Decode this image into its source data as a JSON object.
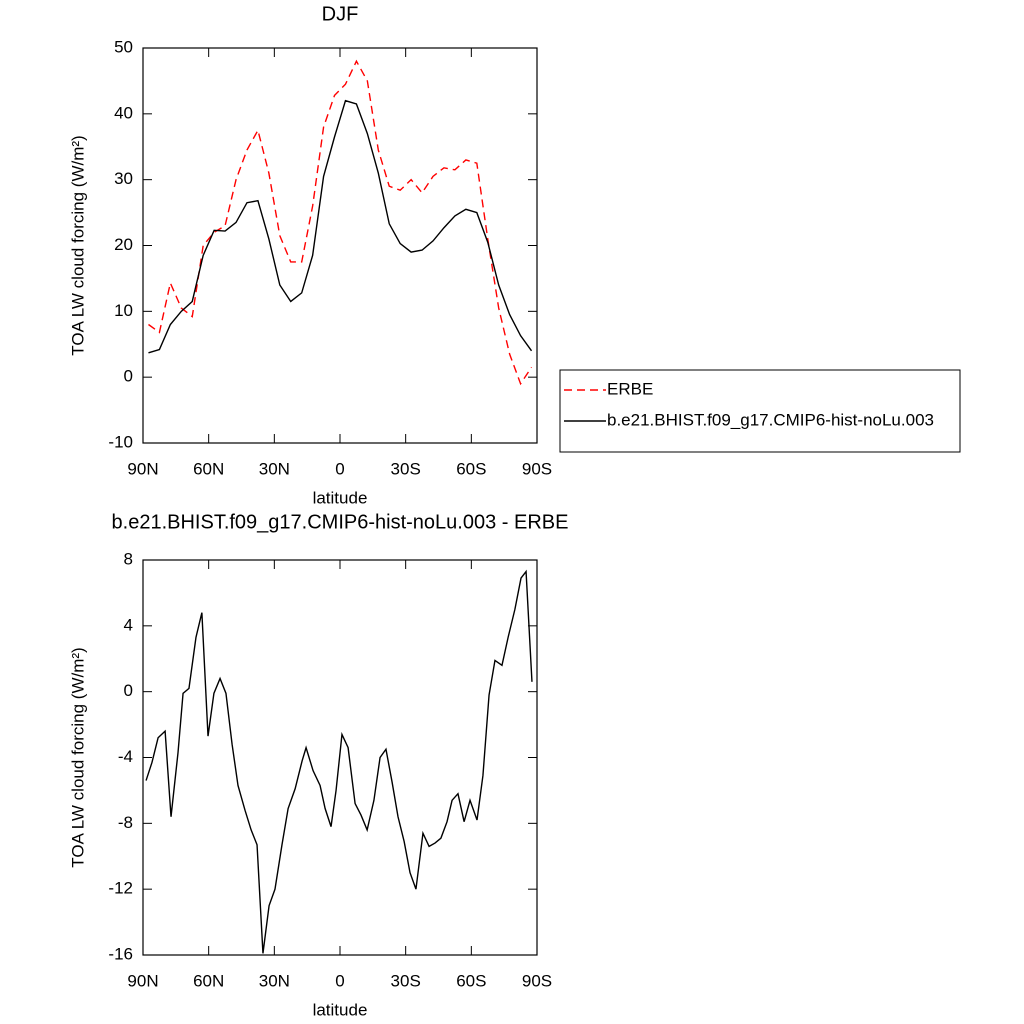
{
  "chart_data": [
    {
      "type": "line",
      "title": "DJF",
      "xlabel": "latitude",
      "ylabel": "TOA LW cloud forcing (W/m²)",
      "x": [
        87.5,
        82.5,
        77.5,
        72.5,
        67.5,
        62.5,
        57.5,
        52.5,
        47.5,
        42.5,
        37.5,
        32.5,
        27.5,
        22.5,
        17.5,
        12.5,
        7.5,
        2.5,
        -2.5,
        -7.5,
        -12.5,
        -17.5,
        -22.5,
        -27.5,
        -32.5,
        -37.5,
        -42.5,
        -47.5,
        -52.5,
        -57.5,
        -62.5,
        -67.5,
        -72.5,
        -77.5,
        -82.5,
        -87.5
      ],
      "series": [
        {
          "name": "ERBE",
          "color": "#ff0000",
          "linestyle": "dashed",
          "values": [
            8,
            6.8,
            14.3,
            10.5,
            9.2,
            20,
            22,
            23,
            30,
            34.5,
            37.5,
            31,
            21.5,
            17.5,
            17.5,
            26,
            38,
            42.8,
            44.5,
            48,
            45,
            34.5,
            29,
            28.4,
            30,
            28,
            30.5,
            31.8,
            31.5,
            33,
            32.5,
            21,
            10.5,
            3.5,
            -1,
            1.5
          ]
        },
        {
          "name": "b.e21.BHIST.f09_g17.CMIP6-hist-noLu.003",
          "color": "#000000",
          "linestyle": "solid",
          "values": [
            3.7,
            4.2,
            8,
            10,
            11.5,
            18.5,
            22.3,
            22.2,
            23.5,
            26.5,
            26.8,
            21,
            14,
            11.5,
            12.8,
            18.5,
            30.5,
            36.5,
            42,
            41.5,
            37,
            31,
            23.3,
            20.3,
            19,
            19.3,
            20.7,
            22.7,
            24.5,
            25.5,
            25,
            20.5,
            14,
            9.5,
            6.3,
            4
          ]
        }
      ],
      "xlim": [
        90,
        -90
      ],
      "xticks": [
        {
          "value": 90,
          "label": "90N"
        },
        {
          "value": 60,
          "label": "60N"
        },
        {
          "value": 30,
          "label": "30N"
        },
        0,
        {
          "value": -30,
          "label": "30S"
        },
        {
          "value": -60,
          "label": "60S"
        },
        {
          "value": -90,
          "label": "90S"
        }
      ],
      "ylim": [
        -10,
        50
      ],
      "yticks": [
        -10,
        0,
        10,
        20,
        30,
        40,
        50
      ],
      "legend": "right"
    },
    {
      "type": "line",
      "title": "b.e21.BHIST.f09_g17.CMIP6-hist-noLu.003 - ERBE",
      "xlabel": "latitude",
      "ylabel": "TOA LW cloud forcing (W/m²)",
      "x": [
        88.6,
        85.9,
        83.1,
        79.9,
        77.2,
        74.0,
        71.7,
        69.0,
        65.8,
        63.1,
        60.3,
        57.6,
        54.8,
        52.1,
        49.3,
        46.6,
        43.4,
        40.6,
        37.9,
        35.2,
        32.4,
        29.7,
        26.5,
        23.7,
        20.5,
        17.3,
        15.5,
        12.3,
        9.1,
        6.8,
        4.1,
        1.8,
        -0.9,
        -3.7,
        -6.9,
        -9.6,
        -12.4,
        -15.5,
        -18.3,
        -21.0,
        -23.8,
        -26.5,
        -29.3,
        -32.0,
        -34.7,
        -37.9,
        -40.7,
        -43.4,
        -46.1,
        -48.9,
        -51.2,
        -53.9,
        -56.7,
        -59.4,
        -62.6,
        -65.3,
        -68.1,
        -70.8,
        -74.0,
        -76.8,
        -79.9,
        -82.7,
        -85.0,
        -87.7
      ],
      "values": [
        -5.4,
        -4.3,
        -2.8,
        -2.4,
        -7.6,
        -3.7,
        -0.1,
        0.2,
        3.3,
        4.8,
        -2.7,
        -0.1,
        0.8,
        -0.1,
        -3.2,
        -5.7,
        -7.2,
        -8.4,
        -9.3,
        -15.9,
        -13,
        -12,
        -9.3,
        -7.1,
        -5.9,
        -4.2,
        -3.4,
        -4.8,
        -5.7,
        -7.1,
        -8.2,
        -6,
        -2.6,
        -3.4,
        -6.8,
        -7.5,
        -8.4,
        -6.6,
        -4,
        -3.5,
        -5.5,
        -7.6,
        -9.1,
        -11,
        -12,
        -8.6,
        -9.4,
        -9.2,
        -8.9,
        -7.9,
        -6.6,
        -6.2,
        -7.9,
        -6.6,
        -7.8,
        -5.1,
        -0.2,
        1.9,
        1.6,
        3.3,
        5,
        6.9,
        7.3,
        0.6
      ],
      "color": "#000000",
      "linestyle": "solid",
      "xlim": [
        90,
        -90
      ],
      "xticks": [
        {
          "value": 90,
          "label": "90N"
        },
        {
          "value": 60,
          "label": "60N"
        },
        {
          "value": 30,
          "label": "30N"
        },
        0,
        {
          "value": -30,
          "label": "30S"
        },
        {
          "value": -60,
          "label": "60S"
        },
        {
          "value": -90,
          "label": "90S"
        }
      ],
      "ylim": [
        -16,
        8
      ],
      "yticks": [
        -16,
        -12,
        -8,
        -4,
        0,
        4,
        8
      ]
    }
  ]
}
